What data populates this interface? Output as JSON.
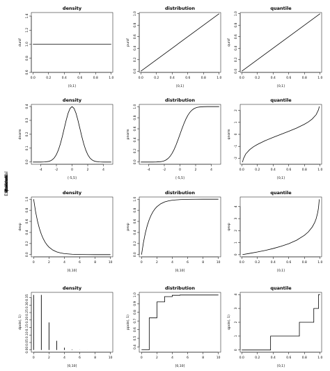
{
  "row_labels": [
    "Standard",
    "Uniform",
    "Normal",
    "Exponential",
    "Poisson"
  ],
  "chart_data": [
    {
      "type": "line",
      "row": 0,
      "col": 0,
      "title": "density",
      "xlabel": "[0,1]",
      "ylabel": "dunif",
      "xlim": [
        -0.02,
        1.02
      ],
      "ylim": [
        0.6,
        1.45
      ],
      "xticks": [
        0.0,
        0.2,
        0.4,
        0.6,
        0.8,
        1.0
      ],
      "yticks": [
        0.6,
        0.8,
        1.0,
        1.2,
        1.4
      ],
      "x": [
        0,
        1
      ],
      "y": [
        1,
        1
      ]
    },
    {
      "type": "line",
      "row": 0,
      "col": 1,
      "title": "distribution",
      "xlabel": "[0,1]",
      "ylabel": "punif",
      "xlim": [
        -0.02,
        1.02
      ],
      "ylim": [
        -0.02,
        1.02
      ],
      "xticks": [
        0.0,
        0.2,
        0.4,
        0.6,
        0.8,
        1.0
      ],
      "yticks": [
        0.0,
        0.2,
        0.4,
        0.6,
        0.8,
        1.0
      ],
      "x": [
        0,
        1
      ],
      "y": [
        0,
        1
      ]
    },
    {
      "type": "line",
      "row": 0,
      "col": 2,
      "title": "quantile",
      "xlabel": "[0,1]",
      "ylabel": "qunif",
      "xlim": [
        -0.02,
        1.02
      ],
      "ylim": [
        -0.02,
        1.02
      ],
      "xticks": [
        0.0,
        0.2,
        0.4,
        0.6,
        0.8,
        1.0
      ],
      "yticks": [
        0.0,
        0.2,
        0.4,
        0.6,
        0.8,
        1.0
      ],
      "x": [
        0,
        1
      ],
      "y": [
        0,
        1
      ]
    },
    {
      "type": "line",
      "row": 1,
      "col": 0,
      "title": "density",
      "xlabel": "[-5,5]",
      "ylabel": "dnorm",
      "xlim": [
        -5.2,
        5.2
      ],
      "ylim": [
        -0.016,
        0.415
      ],
      "xticks": [
        -4,
        -2,
        0,
        2,
        4
      ],
      "yticks": [
        0.0,
        0.1,
        0.2,
        0.3,
        0.4
      ],
      "x": [
        -5,
        -4.5,
        -4,
        -3.5,
        -3,
        -2.75,
        -2.5,
        -2.25,
        -2,
        -1.75,
        -1.5,
        -1.25,
        -1,
        -0.75,
        -0.5,
        -0.25,
        0,
        0.25,
        0.5,
        0.75,
        1,
        1.25,
        1.5,
        1.75,
        2,
        2.25,
        2.5,
        2.75,
        3,
        3.5,
        4,
        4.5,
        5
      ],
      "y": [
        0,
        0,
        0.0001,
        0.0009,
        0.0044,
        0.0091,
        0.0175,
        0.0317,
        0.054,
        0.0863,
        0.1295,
        0.1826,
        0.242,
        0.3011,
        0.3521,
        0.3867,
        0.3989,
        0.3867,
        0.3521,
        0.3011,
        0.242,
        0.1826,
        0.1295,
        0.0863,
        0.054,
        0.0317,
        0.0175,
        0.0091,
        0.0044,
        0.0009,
        0.0001,
        0,
        0
      ]
    },
    {
      "type": "line",
      "row": 1,
      "col": 1,
      "title": "distribution",
      "xlabel": "[-5,5]",
      "ylabel": "pnorm",
      "xlim": [
        -5.2,
        5.2
      ],
      "ylim": [
        -0.04,
        1.04
      ],
      "xticks": [
        -4,
        -2,
        0,
        2,
        4
      ],
      "yticks": [
        0.0,
        0.2,
        0.4,
        0.6,
        0.8,
        1.0
      ],
      "x": [
        -5,
        -4,
        -3.5,
        -3,
        -2.5,
        -2.25,
        -2,
        -1.75,
        -1.5,
        -1.25,
        -1,
        -0.75,
        -0.5,
        -0.25,
        0,
        0.25,
        0.5,
        0.75,
        1,
        1.25,
        1.5,
        1.75,
        2,
        2.25,
        2.5,
        3,
        3.5,
        4,
        5
      ],
      "y": [
        0,
        0,
        0.0002,
        0.0013,
        0.0062,
        0.0122,
        0.0228,
        0.0401,
        0.0668,
        0.1056,
        0.1587,
        0.2266,
        0.3085,
        0.4013,
        0.5,
        0.5987,
        0.6915,
        0.7734,
        0.8413,
        0.8944,
        0.9332,
        0.9599,
        0.9772,
        0.9878,
        0.9938,
        0.9987,
        0.9998,
        1,
        1
      ]
    },
    {
      "type": "line",
      "row": 1,
      "col": 2,
      "title": "quantile",
      "xlabel": "[0,1]",
      "ylabel": "qnorm",
      "xlim": [
        -0.02,
        1.02
      ],
      "ylim": [
        -2.5,
        2.5
      ],
      "xticks": [
        0.0,
        0.2,
        0.4,
        0.6,
        0.8,
        1.0
      ],
      "yticks": [
        -2,
        -1,
        0,
        1,
        2
      ],
      "x": [
        0.01,
        0.02,
        0.05,
        0.1,
        0.15,
        0.2,
        0.3,
        0.4,
        0.5,
        0.6,
        0.7,
        0.8,
        0.85,
        0.9,
        0.95,
        0.98,
        0.99
      ],
      "y": [
        -2.326,
        -2.054,
        -1.645,
        -1.282,
        -1.036,
        -0.842,
        -0.524,
        -0.253,
        0,
        0.253,
        0.524,
        0.842,
        1.036,
        1.282,
        1.645,
        2.054,
        2.326
      ]
    },
    {
      "type": "line",
      "row": 2,
      "col": 0,
      "title": "density",
      "xlabel": "[0,10]",
      "ylabel": "dexp",
      "xlim": [
        -0.3,
        10.3
      ],
      "ylim": [
        -0.04,
        1.04
      ],
      "xticks": [
        0,
        2,
        4,
        6,
        8,
        10
      ],
      "yticks": [
        0.0,
        0.2,
        0.4,
        0.6,
        0.8,
        1.0
      ],
      "x": [
        0,
        0.25,
        0.5,
        0.75,
        1,
        1.25,
        1.5,
        1.75,
        2,
        2.5,
        3,
        3.5,
        4,
        5,
        6,
        7,
        8,
        9,
        10
      ],
      "y": [
        1,
        0.7788,
        0.6065,
        0.4724,
        0.3679,
        0.2865,
        0.2231,
        0.1738,
        0.1353,
        0.0821,
        0.0498,
        0.0302,
        0.0183,
        0.0067,
        0.0025,
        0.0009,
        0.0003,
        0.0001,
        0
      ]
    },
    {
      "type": "line",
      "row": 2,
      "col": 1,
      "title": "distribution",
      "xlabel": "[0,10]",
      "ylabel": "pexp",
      "xlim": [
        -0.3,
        10.3
      ],
      "ylim": [
        -0.04,
        1.04
      ],
      "xticks": [
        0,
        2,
        4,
        6,
        8,
        10
      ],
      "yticks": [
        0.0,
        0.2,
        0.4,
        0.6,
        0.8,
        1.0
      ],
      "x": [
        0,
        0.25,
        0.5,
        0.75,
        1,
        1.25,
        1.5,
        1.75,
        2,
        2.5,
        3,
        3.5,
        4,
        5,
        6,
        7,
        8,
        9,
        10
      ],
      "y": [
        0,
        0.2212,
        0.3935,
        0.5276,
        0.6321,
        0.7135,
        0.7769,
        0.8262,
        0.8647,
        0.9179,
        0.9502,
        0.9698,
        0.9817,
        0.9933,
        0.9975,
        0.9991,
        0.9997,
        0.9999,
        1
      ]
    },
    {
      "type": "line",
      "row": 2,
      "col": 2,
      "title": "quantile",
      "xlabel": "[0,1]",
      "ylabel": "qexp",
      "xlim": [
        -0.02,
        1.02
      ],
      "ylim": [
        -0.18,
        4.8
      ],
      "xticks": [
        0.0,
        0.2,
        0.4,
        0.6,
        0.8,
        1.0
      ],
      "yticks": [
        0,
        1,
        2,
        3,
        4
      ],
      "x": [
        0.01,
        0.1,
        0.2,
        0.3,
        0.4,
        0.5,
        0.6,
        0.7,
        0.8,
        0.85,
        0.9,
        0.93,
        0.95,
        0.97,
        0.98,
        0.99
      ],
      "y": [
        0.01,
        0.105,
        0.223,
        0.357,
        0.511,
        0.693,
        0.916,
        1.204,
        1.609,
        1.897,
        2.303,
        2.659,
        2.996,
        3.507,
        3.912,
        4.605
      ]
    },
    {
      "type": "bar",
      "row": 3,
      "col": 0,
      "title": "density",
      "xlabel": "[0,10]",
      "ylabel": "dpois(, 1)",
      "xlim": [
        -0.3,
        10.3
      ],
      "ylim": [
        -0.015,
        0.385
      ],
      "xticks": [
        0,
        2,
        4,
        6,
        8,
        10
      ],
      "yticks": [
        0.0,
        0.05,
        0.1,
        0.15,
        0.2,
        0.25,
        0.3,
        0.35
      ],
      "x": [
        0,
        1,
        2,
        3,
        4,
        5,
        6,
        7,
        8,
        9,
        10
      ],
      "y": [
        0.3679,
        0.3679,
        0.1839,
        0.0613,
        0.0153,
        0.0031,
        0.0005,
        0.0001,
        0,
        0,
        0
      ]
    },
    {
      "type": "line",
      "row": 3,
      "col": 1,
      "title": "distribution",
      "xlabel": "[0,10]",
      "ylabel": "ppois(, 1)",
      "xlim": [
        -0.3,
        10.3
      ],
      "ylim": [
        0.34,
        1.03
      ],
      "xticks": [
        0,
        2,
        4,
        6,
        8,
        10
      ],
      "yticks": [
        0.4,
        0.5,
        0.6,
        0.7,
        0.8,
        0.9,
        1.0
      ],
      "x": [
        0,
        1,
        1,
        2,
        2,
        3,
        3,
        4,
        4,
        5,
        5,
        10
      ],
      "y": [
        0.3679,
        0.3679,
        0.7358,
        0.7358,
        0.9197,
        0.9197,
        0.981,
        0.981,
        0.9963,
        0.9963,
        0.9994,
        0.9994
      ]
    },
    {
      "type": "line",
      "row": 3,
      "col": 2,
      "title": "quantile",
      "xlabel": "[0,1]",
      "ylabel": "qpois(, 1)",
      "xlim": [
        -0.02,
        1.02
      ],
      "ylim": [
        -0.16,
        4.16
      ],
      "xticks": [
        0.0,
        0.2,
        0.4,
        0.6,
        0.8,
        1.0
      ],
      "yticks": [
        0,
        1,
        2,
        3,
        4
      ],
      "x": [
        0,
        0.3679,
        0.3679,
        0.7358,
        0.7358,
        0.9197,
        0.9197,
        0.981,
        0.981,
        1
      ],
      "y": [
        0,
        0,
        1,
        1,
        2,
        2,
        3,
        3,
        4,
        4
      ]
    }
  ]
}
